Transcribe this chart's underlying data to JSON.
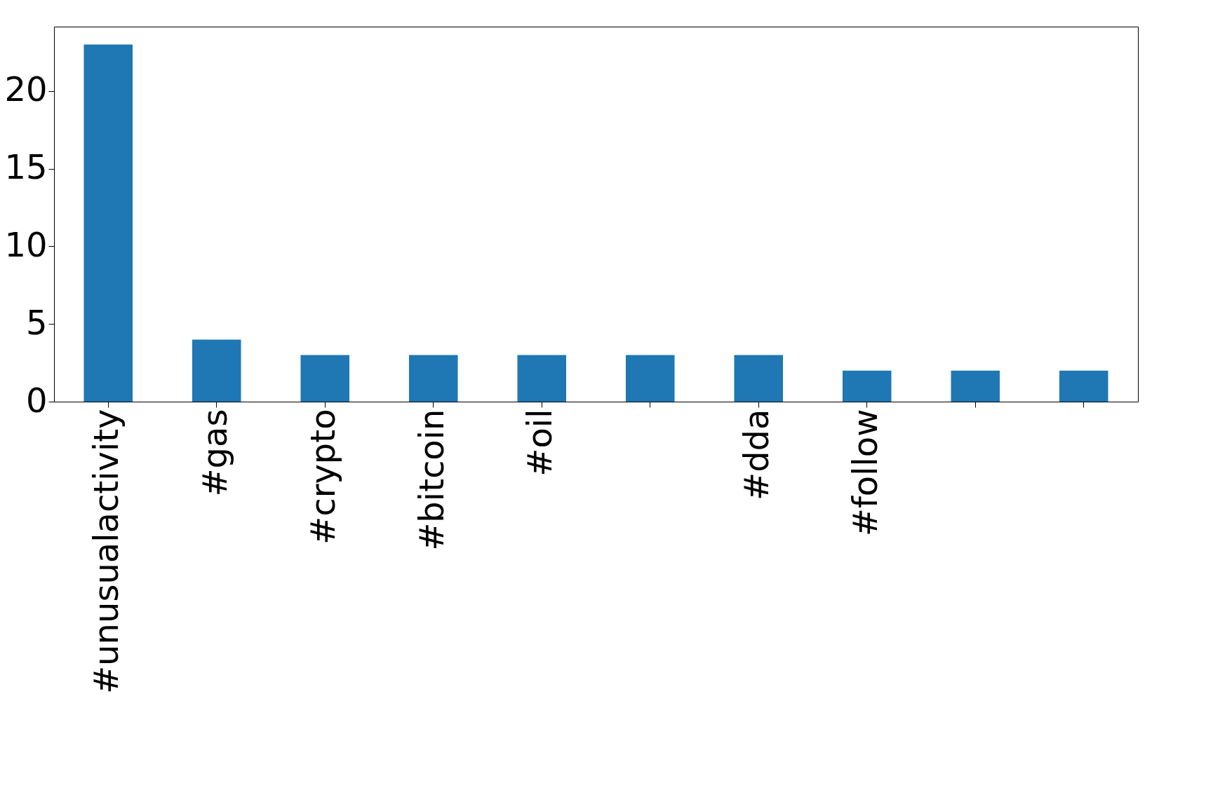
{
  "chart_data": {
    "type": "bar",
    "categories": [
      "#unusualactivity",
      "#gas",
      "#crypto",
      "#bitcoin",
      "#oil",
      null,
      "#dda",
      "#follow",
      null,
      null
    ],
    "values": [
      23,
      4,
      3,
      3,
      3,
      3,
      3,
      2,
      2,
      2
    ],
    "color": "#1f77b4",
    "ylim": [
      0,
      24.15
    ],
    "yticks": [
      0,
      5,
      10,
      15,
      20
    ],
    "grid": false
  }
}
